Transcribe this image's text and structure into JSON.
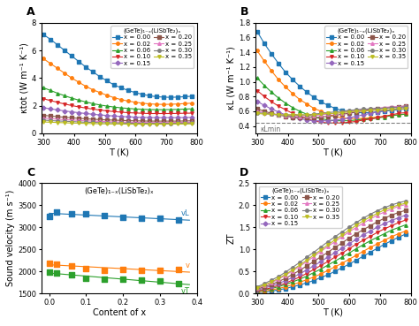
{
  "chart_data": [
    {
      "type": "line",
      "panel_label": "A",
      "x_label": "T (K)",
      "y_label": "κtot (W m⁻¹ K⁻¹)",
      "annotation": "(GeTe)₁₋ₓ(LiSbTe₂)ₓ",
      "legend": "upper right",
      "xlim": [
        295,
        800
      ],
      "xticks": [
        300,
        400,
        500,
        600,
        700,
        800
      ],
      "ylim": [
        0,
        8
      ],
      "yticks": [
        0,
        2,
        4,
        6,
        8
      ],
      "x": [
        300,
        323,
        346,
        369,
        392,
        415,
        438,
        461,
        484,
        507,
        530,
        553,
        576,
        599,
        622,
        645,
        668,
        691,
        714,
        737,
        760,
        783
      ],
      "series": [
        {
          "name": "x = 0.00",
          "marker": "square",
          "values": [
            7.15,
            6.8,
            6.4,
            6.0,
            5.6,
            5.2,
            4.8,
            4.45,
            4.1,
            3.8,
            3.5,
            3.3,
            3.1,
            2.95,
            2.82,
            2.72,
            2.65,
            2.62,
            2.6,
            2.62,
            2.65,
            2.68
          ]
        },
        {
          "name": "x = 0.02",
          "marker": "circle",
          "values": [
            5.4,
            5.05,
            4.7,
            4.35,
            4.0,
            3.7,
            3.4,
            3.15,
            2.95,
            2.75,
            2.58,
            2.44,
            2.33,
            2.25,
            2.18,
            2.13,
            2.1,
            2.09,
            2.1,
            2.12,
            2.15,
            2.18
          ]
        },
        {
          "name": "x = 0.06",
          "marker": "triangle_up",
          "values": [
            3.3,
            3.1,
            2.9,
            2.72,
            2.55,
            2.4,
            2.27,
            2.15,
            2.05,
            1.97,
            1.9,
            1.84,
            1.8,
            1.76,
            1.74,
            1.72,
            1.71,
            1.71,
            1.72,
            1.73,
            1.75,
            1.77
          ]
        },
        {
          "name": "x = 0.10",
          "marker": "triangle_down",
          "values": [
            2.5,
            2.37,
            2.24,
            2.12,
            2.01,
            1.91,
            1.83,
            1.75,
            1.68,
            1.62,
            1.57,
            1.53,
            1.49,
            1.47,
            1.45,
            1.43,
            1.43,
            1.43,
            1.43,
            1.44,
            1.45,
            1.46
          ]
        },
        {
          "name": "x = 0.15",
          "marker": "diamond",
          "values": [
            1.85,
            1.77,
            1.69,
            1.62,
            1.55,
            1.49,
            1.43,
            1.38,
            1.33,
            1.29,
            1.25,
            1.22,
            1.19,
            1.17,
            1.15,
            1.14,
            1.13,
            1.13,
            1.13,
            1.13,
            1.14,
            1.15
          ]
        },
        {
          "name": "x = 0.20",
          "marker": "square",
          "values": [
            1.3,
            1.25,
            1.2,
            1.16,
            1.12,
            1.08,
            1.05,
            1.02,
            0.99,
            0.97,
            0.95,
            0.93,
            0.91,
            0.9,
            0.89,
            0.88,
            0.88,
            0.88,
            0.88,
            0.88,
            0.89,
            0.9
          ]
        },
        {
          "name": "x = 0.25",
          "marker": "triangle_up",
          "values": [
            1.1,
            1.06,
            1.02,
            0.99,
            0.96,
            0.93,
            0.9,
            0.88,
            0.86,
            0.84,
            0.82,
            0.81,
            0.8,
            0.79,
            0.78,
            0.78,
            0.78,
            0.78,
            0.78,
            0.79,
            0.79,
            0.8
          ]
        },
        {
          "name": "x = 0.30",
          "marker": "circle",
          "values": [
            0.95,
            0.92,
            0.89,
            0.87,
            0.85,
            0.82,
            0.8,
            0.79,
            0.77,
            0.76,
            0.75,
            0.74,
            0.73,
            0.72,
            0.72,
            0.72,
            0.72,
            0.72,
            0.72,
            0.73,
            0.73,
            0.74
          ]
        },
        {
          "name": "x = 0.35",
          "marker": "triangle_down",
          "values": [
            0.82,
            0.8,
            0.78,
            0.76,
            0.74,
            0.73,
            0.71,
            0.7,
            0.69,
            0.68,
            0.67,
            0.67,
            0.66,
            0.66,
            0.66,
            0.66,
            0.66,
            0.66,
            0.67,
            0.67,
            0.67,
            0.68
          ]
        }
      ]
    },
    {
      "type": "line",
      "panel_label": "B",
      "x_label": "T (K)",
      "y_label": "κL (W m⁻¹ K⁻¹)",
      "annotation": "(GeTe)₁₋ₓ(LiSbTe₂)ₓ",
      "legend": "upper right",
      "hline": {
        "value": 0.44,
        "label": "κLmin",
        "line_style": "dashed"
      },
      "xlim": [
        295,
        800
      ],
      "xticks": [
        300,
        400,
        500,
        600,
        700,
        800
      ],
      "ylim": [
        0.3,
        1.8
      ],
      "yticks": [
        0.4,
        0.6,
        0.8,
        1.0,
        1.2,
        1.4,
        1.6,
        1.8
      ],
      "x": [
        300,
        323,
        346,
        369,
        392,
        415,
        438,
        461,
        484,
        507,
        530,
        553,
        576,
        599,
        622,
        645,
        668,
        691,
        714,
        737,
        760,
        783
      ],
      "series": [
        {
          "name": "x = 0.00",
          "marker": "square",
          "values": [
            1.68,
            1.52,
            1.38,
            1.25,
            1.13,
            1.03,
            0.94,
            0.86,
            0.79,
            0.73,
            0.68,
            0.64,
            0.61,
            0.59,
            0.58,
            0.58,
            0.58,
            0.59,
            0.6,
            0.61,
            0.62,
            0.63
          ]
        },
        {
          "name": "x = 0.02",
          "marker": "circle",
          "values": [
            1.42,
            1.28,
            1.15,
            1.03,
            0.93,
            0.84,
            0.76,
            0.7,
            0.64,
            0.6,
            0.56,
            0.53,
            0.51,
            0.5,
            0.5,
            0.5,
            0.51,
            0.52,
            0.53,
            0.54,
            0.55,
            0.56
          ]
        },
        {
          "name": "x = 0.06",
          "marker": "triangle_up",
          "values": [
            1.05,
            0.95,
            0.86,
            0.78,
            0.71,
            0.65,
            0.6,
            0.56,
            0.52,
            0.5,
            0.48,
            0.47,
            0.47,
            0.47,
            0.48,
            0.49,
            0.5,
            0.51,
            0.52,
            0.54,
            0.55,
            0.56
          ]
        },
        {
          "name": "x = 0.10",
          "marker": "triangle_down",
          "values": [
            0.88,
            0.8,
            0.73,
            0.67,
            0.62,
            0.57,
            0.53,
            0.5,
            0.47,
            0.45,
            0.44,
            0.44,
            0.44,
            0.45,
            0.46,
            0.48,
            0.49,
            0.51,
            0.53,
            0.55,
            0.57,
            0.58
          ]
        },
        {
          "name": "x = 0.15",
          "marker": "diamond",
          "values": [
            0.73,
            0.68,
            0.63,
            0.59,
            0.55,
            0.52,
            0.5,
            0.48,
            0.47,
            0.47,
            0.47,
            0.48,
            0.49,
            0.51,
            0.53,
            0.55,
            0.57,
            0.59,
            0.61,
            0.62,
            0.64,
            0.65
          ]
        },
        {
          "name": "x = 0.20",
          "marker": "square",
          "values": [
            0.63,
            0.6,
            0.57,
            0.55,
            0.53,
            0.52,
            0.51,
            0.51,
            0.51,
            0.52,
            0.53,
            0.54,
            0.56,
            0.57,
            0.59,
            0.61,
            0.62,
            0.63,
            0.64,
            0.65,
            0.66,
            0.67
          ]
        },
        {
          "name": "x = 0.25",
          "marker": "triangle_up",
          "values": [
            0.6,
            0.58,
            0.56,
            0.55,
            0.54,
            0.54,
            0.53,
            0.54,
            0.54,
            0.55,
            0.56,
            0.57,
            0.58,
            0.6,
            0.61,
            0.62,
            0.63,
            0.64,
            0.65,
            0.66,
            0.66,
            0.67
          ]
        },
        {
          "name": "x = 0.30",
          "marker": "circle",
          "values": [
            0.58,
            0.57,
            0.56,
            0.55,
            0.55,
            0.55,
            0.55,
            0.55,
            0.56,
            0.57,
            0.58,
            0.59,
            0.6,
            0.61,
            0.62,
            0.63,
            0.63,
            0.64,
            0.64,
            0.65,
            0.65,
            0.66
          ]
        },
        {
          "name": "x = 0.35",
          "marker": "triangle_down",
          "values": [
            0.57,
            0.56,
            0.56,
            0.55,
            0.55,
            0.55,
            0.55,
            0.55,
            0.55,
            0.56,
            0.57,
            0.57,
            0.58,
            0.59,
            0.6,
            0.6,
            0.61,
            0.61,
            0.62,
            0.62,
            0.63,
            0.63
          ]
        }
      ]
    },
    {
      "type": "scatter",
      "panel_label": "C",
      "x_label": "Content of x",
      "y_label": "Sound velocity (m s⁻¹)",
      "annotation": "(GeTe)₁₋ₓ(LiSbTe₂)ₓ",
      "xlim": [
        -0.02,
        0.4
      ],
      "xticks": [
        0.0,
        0.1,
        0.2,
        0.3,
        0.4
      ],
      "ylim": [
        1500,
        4000
      ],
      "yticks": [
        1500,
        2000,
        2500,
        3000,
        3500,
        4000
      ],
      "x": [
        0.0,
        0.02,
        0.06,
        0.1,
        0.15,
        0.2,
        0.25,
        0.3,
        0.35
      ],
      "series": [
        {
          "marker": "square",
          "color": "#1f77b4",
          "values": [
            3250,
            3340,
            3310,
            3295,
            3260,
            3230,
            3195,
            3200,
            3160
          ]
        },
        {
          "type": "line",
          "name": "vL",
          "color": "#1f77b4",
          "x": [
            0.0,
            0.38
          ],
          "values": [
            3314.4,
            3157.7
          ]
        },
        {
          "marker": "square",
          "color": "#ff7f0e",
          "values": [
            2190,
            2170,
            2130,
            2060,
            2020,
            2050,
            2020,
            2030,
            2040
          ]
        },
        {
          "type": "line",
          "name": "v",
          "color": "#ff7f0e",
          "x": [
            0.0,
            0.38
          ],
          "values": [
            2148.7,
            1981.7
          ]
        },
        {
          "marker": "square",
          "color": "#2ca02c",
          "values": [
            1990,
            1970,
            1920,
            1840,
            1820,
            1820,
            1800,
            1780,
            1720
          ]
        },
        {
          "type": "line",
          "name": "vT",
          "color": "#2ca02c",
          "x": [
            0.0,
            0.38
          ],
          "values": [
            1960.4,
            1699.0
          ]
        }
      ]
    },
    {
      "type": "line",
      "panel_label": "D",
      "x_label": "T (K)",
      "y_label": "ZT",
      "annotation": "(GeTe)₁₋ₓ(LiSbTe₂)ₓ",
      "legend": "upper left",
      "xlim": [
        295,
        800
      ],
      "xticks": [
        300,
        400,
        500,
        600,
        700,
        800
      ],
      "ylim": [
        0,
        2.5
      ],
      "yticks": [
        0.0,
        0.5,
        1.0,
        1.5,
        2.0,
        2.5
      ],
      "x": [
        300,
        323,
        346,
        369,
        392,
        415,
        438,
        461,
        484,
        507,
        530,
        553,
        576,
        599,
        622,
        645,
        668,
        691,
        714,
        737,
        760,
        783
      ],
      "series": [
        {
          "name": "x = 0.00",
          "marker": "square",
          "values": [
            0.02,
            0.03,
            0.05,
            0.08,
            0.11,
            0.15,
            0.19,
            0.24,
            0.29,
            0.36,
            0.42,
            0.5,
            0.58,
            0.66,
            0.75,
            0.84,
            0.93,
            1.02,
            1.11,
            1.19,
            1.27,
            1.34
          ]
        },
        {
          "name": "x = 0.02",
          "marker": "circle",
          "values": [
            0.03,
            0.05,
            0.08,
            0.11,
            0.15,
            0.2,
            0.25,
            0.31,
            0.37,
            0.44,
            0.52,
            0.6,
            0.68,
            0.77,
            0.86,
            0.95,
            1.04,
            1.12,
            1.2,
            1.28,
            1.35,
            1.41
          ]
        },
        {
          "name": "x = 0.06",
          "marker": "triangle_up",
          "values": [
            0.05,
            0.08,
            0.11,
            0.15,
            0.2,
            0.26,
            0.32,
            0.39,
            0.47,
            0.55,
            0.64,
            0.73,
            0.82,
            0.91,
            1.01,
            1.1,
            1.19,
            1.27,
            1.35,
            1.43,
            1.49,
            1.55
          ]
        },
        {
          "name": "x = 0.10",
          "marker": "triangle_down",
          "values": [
            0.06,
            0.09,
            0.13,
            0.18,
            0.23,
            0.3,
            0.37,
            0.45,
            0.54,
            0.63,
            0.72,
            0.82,
            0.91,
            1.01,
            1.11,
            1.2,
            1.29,
            1.38,
            1.46,
            1.53,
            1.6,
            1.66
          ]
        },
        {
          "name": "x = 0.15",
          "marker": "diamond",
          "values": [
            0.08,
            0.12,
            0.17,
            0.22,
            0.29,
            0.36,
            0.44,
            0.53,
            0.62,
            0.72,
            0.82,
            0.92,
            1.02,
            1.12,
            1.22,
            1.32,
            1.41,
            1.5,
            1.58,
            1.65,
            1.71,
            1.77
          ]
        },
        {
          "name": "x = 0.20",
          "marker": "square",
          "values": [
            0.1,
            0.15,
            0.2,
            0.27,
            0.34,
            0.43,
            0.52,
            0.62,
            0.72,
            0.83,
            0.93,
            1.04,
            1.14,
            1.25,
            1.35,
            1.44,
            1.53,
            1.62,
            1.7,
            1.77,
            1.83,
            1.88
          ]
        },
        {
          "name": "x = 0.25",
          "marker": "triangle_up",
          "values": [
            0.12,
            0.18,
            0.24,
            0.32,
            0.41,
            0.51,
            0.61,
            0.72,
            0.83,
            0.95,
            1.06,
            1.17,
            1.28,
            1.39,
            1.49,
            1.59,
            1.68,
            1.77,
            1.84,
            1.91,
            1.97,
            2.01
          ]
        },
        {
          "name": "x = 0.30",
          "marker": "circle",
          "values": [
            0.15,
            0.22,
            0.3,
            0.38,
            0.48,
            0.59,
            0.7,
            0.82,
            0.93,
            1.05,
            1.17,
            1.28,
            1.39,
            1.5,
            1.6,
            1.7,
            1.79,
            1.87,
            1.94,
            2.0,
            2.05,
            2.09
          ]
        },
        {
          "name": "x = 0.35",
          "marker": "triangle_down",
          "values": [
            0.13,
            0.19,
            0.26,
            0.34,
            0.43,
            0.53,
            0.64,
            0.75,
            0.87,
            0.98,
            1.1,
            1.21,
            1.32,
            1.43,
            1.54,
            1.64,
            1.73,
            1.81,
            1.89,
            1.95,
            2.0,
            2.04
          ]
        }
      ]
    }
  ]
}
